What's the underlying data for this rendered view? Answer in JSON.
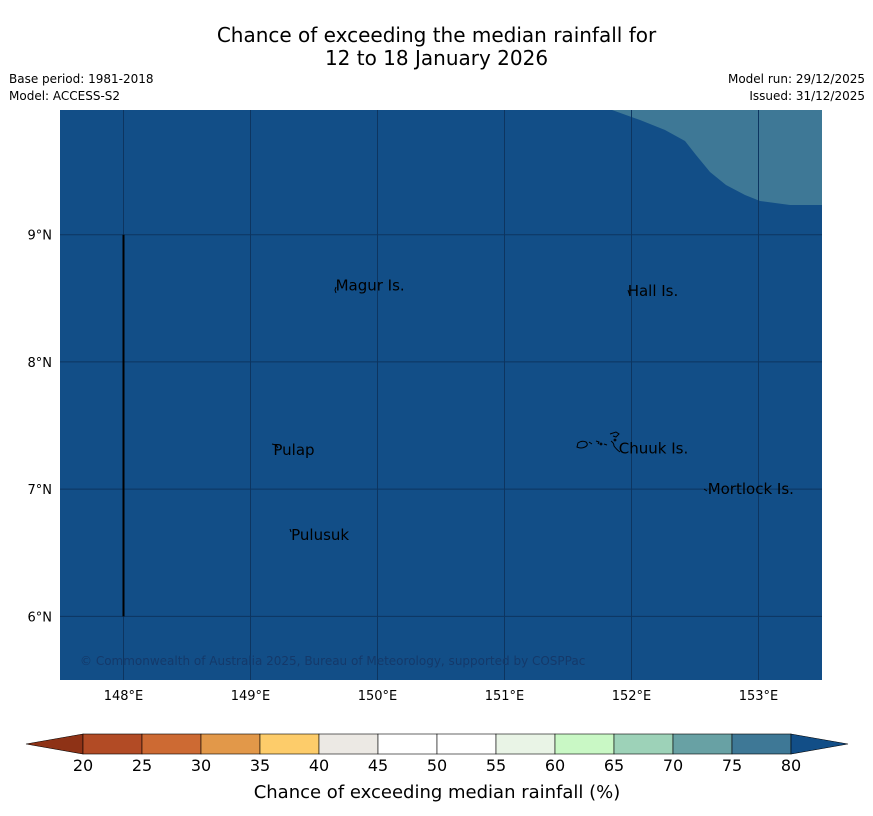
{
  "title": {
    "line1": "Chance of exceeding the median rainfall for",
    "line2": "12 to 18 January 2026"
  },
  "meta": {
    "base_period": "Base period: 1981-2018",
    "model": "Model: ACCESS-S2",
    "model_run": "Model run: 29/12/2025",
    "issued": "Issued: 31/12/2025"
  },
  "map": {
    "lon_range": [
      147.5,
      153.5
    ],
    "lat_range": [
      5.5,
      9.98
    ],
    "lon_ticks": [
      {
        "value": 148,
        "label": "148°E"
      },
      {
        "value": 149,
        "label": "149°E"
      },
      {
        "value": 150,
        "label": "150°E"
      },
      {
        "value": 151,
        "label": "151°E"
      },
      {
        "value": 152,
        "label": "152°E"
      },
      {
        "value": 153,
        "label": "153°E"
      }
    ],
    "lat_ticks": [
      {
        "value": 9,
        "label": "9°N"
      },
      {
        "value": 8,
        "label": "8°N"
      },
      {
        "value": 7,
        "label": "7°N"
      },
      {
        "value": 6,
        "label": "6°N"
      }
    ],
    "base_fill_color": "#124e87",
    "upper_right_fill_color": "#3e7896",
    "gridline_color": "#0d3560",
    "boundary_line": {
      "lon": 148,
      "lat_from": 6,
      "lat_to": 9
    },
    "places": [
      {
        "name": "Magur Is.",
        "lon": 149.67,
        "lat": 8.56
      },
      {
        "name": "Hall Is.",
        "lon": 151.97,
        "lat": 8.52
      },
      {
        "name": "Pulap",
        "lon": 149.18,
        "lat": 7.27
      },
      {
        "name": "Chuuk Is.",
        "lon": 151.9,
        "lat": 7.28
      },
      {
        "name": "Mortlock Is.",
        "lon": 152.6,
        "lat": 6.96
      },
      {
        "name": "Pulusuk",
        "lon": 149.32,
        "lat": 6.6
      }
    ],
    "copyright": "© Commonwealth of Australia 2025, Bureau of Meteorology, supported by COSPPac"
  },
  "colorbar": {
    "label": "Chance of exceeding median rainfall (%)",
    "ticks": [
      "20",
      "25",
      "30",
      "35",
      "40",
      "45",
      "50",
      "55",
      "60",
      "65",
      "70",
      "75",
      "80"
    ],
    "under_color": "#8e3216",
    "over_color": "#124e87",
    "segment_colors": [
      "#b24b25",
      "#cd6a33",
      "#e29849",
      "#fdcc6a",
      "#ece9e4",
      "#ffffff",
      "#ffffff",
      "#e9f4e6",
      "#c9f8c5",
      "#9dd2b8",
      "#68a1a4",
      "#3e7896"
    ]
  }
}
